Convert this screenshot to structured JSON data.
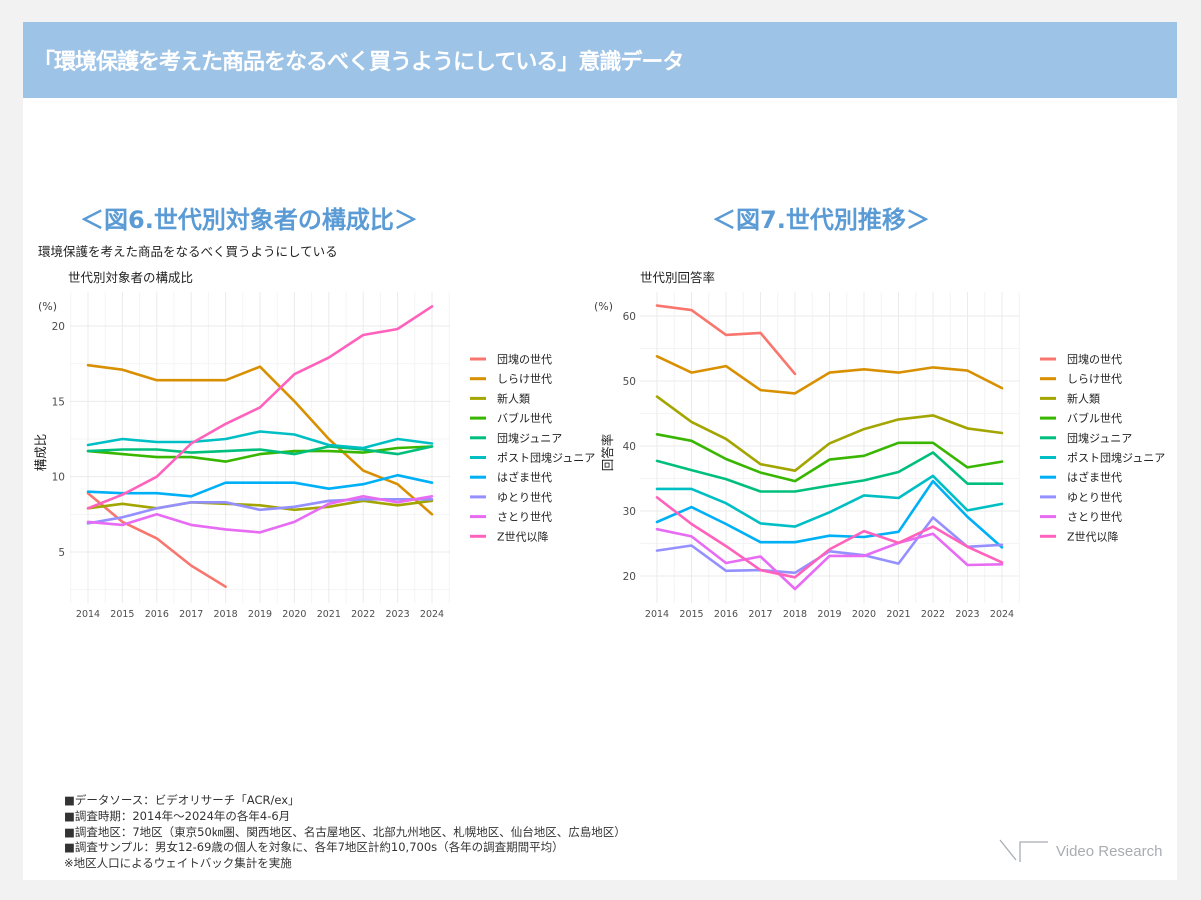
{
  "header": {
    "title": "「環境保護を考えた商品をなるべく買うようにしている」意識データ"
  },
  "figures": {
    "fig6_title": "＜図6.世代別対象者の構成比＞",
    "fig7_title": "＜図7.世代別推移＞",
    "fig6_question": "環境保護を考えた商品をなるべく買うようにしている"
  },
  "chart_data": [
    {
      "type": "line",
      "title": "世代別対象者の構成比",
      "xlabel": "",
      "ylabel": "構成比",
      "yunit": "(%)",
      "x": [
        2014,
        2015,
        2016,
        2017,
        2018,
        2019,
        2020,
        2021,
        2022,
        2023,
        2024
      ],
      "ylim": [
        2,
        22
      ],
      "yticks": [
        5,
        10,
        15,
        20
      ],
      "grid": true,
      "legend": "right",
      "series": [
        {
          "name": "団塊の世代",
          "color": "#f8766d",
          "values": [
            8.9,
            7.0,
            5.9,
            4.1,
            2.7,
            null,
            null,
            null,
            null,
            null,
            null
          ]
        },
        {
          "name": "しらけ世代",
          "color": "#d89000",
          "values": [
            17.4,
            17.1,
            16.4,
            16.4,
            16.4,
            17.3,
            15.0,
            12.5,
            10.4,
            9.5,
            7.5
          ]
        },
        {
          "name": "新人類",
          "color": "#a3a500",
          "values": [
            7.9,
            8.2,
            7.9,
            8.3,
            8.2,
            8.1,
            7.8,
            8.0,
            8.4,
            8.1,
            8.4
          ]
        },
        {
          "name": "バブル世代",
          "color": "#39b600",
          "values": [
            11.7,
            11.5,
            11.3,
            11.3,
            11.0,
            11.5,
            11.7,
            11.7,
            11.6,
            11.9,
            12.0
          ]
        },
        {
          "name": "団塊ジュニア",
          "color": "#00bf7d",
          "values": [
            11.7,
            11.8,
            11.8,
            11.6,
            11.7,
            11.8,
            11.5,
            12.0,
            11.8,
            11.5,
            12.0
          ]
        },
        {
          "name": "ポスト団塊ジュニア",
          "color": "#00bfc4",
          "values": [
            12.1,
            12.5,
            12.3,
            12.3,
            12.5,
            13.0,
            12.8,
            12.1,
            11.9,
            12.5,
            12.2
          ]
        },
        {
          "name": "はざま世代",
          "color": "#00b0f6",
          "values": [
            9.0,
            8.9,
            8.9,
            8.7,
            9.6,
            9.6,
            9.6,
            9.2,
            9.5,
            10.1,
            9.6
          ]
        },
        {
          "name": "ゆとり世代",
          "color": "#9590ff",
          "values": [
            6.9,
            7.3,
            7.9,
            8.3,
            8.3,
            7.8,
            8.0,
            8.4,
            8.5,
            8.5,
            8.5
          ]
        },
        {
          "name": "さとり世代",
          "color": "#e76bf3",
          "values": [
            7.0,
            6.8,
            7.5,
            6.8,
            6.5,
            6.3,
            7.0,
            8.2,
            8.7,
            8.3,
            8.7
          ]
        },
        {
          "name": "Z世代以降",
          "color": "#ff62bc",
          "values": [
            7.9,
            8.8,
            10.0,
            12.2,
            13.5,
            14.6,
            16.8,
            17.9,
            19.4,
            19.8,
            21.3
          ]
        }
      ]
    },
    {
      "type": "line",
      "title": "世代別回答率",
      "xlabel": "",
      "ylabel": "回答率",
      "yunit": "(%)",
      "x": [
        2014,
        2015,
        2016,
        2017,
        2018,
        2019,
        2020,
        2021,
        2022,
        2023,
        2024
      ],
      "ylim": [
        16,
        64
      ],
      "yticks": [
        20,
        30,
        40,
        50,
        60
      ],
      "grid": true,
      "legend": "right",
      "series": [
        {
          "name": "団塊の世代",
          "color": "#f8766d",
          "values": [
            61.6,
            60.9,
            57.1,
            57.4,
            51.1,
            null,
            null,
            null,
            null,
            null,
            null
          ]
        },
        {
          "name": "しらけ世代",
          "color": "#d89000",
          "values": [
            53.8,
            51.3,
            52.3,
            48.6,
            48.1,
            51.3,
            51.8,
            51.3,
            52.1,
            51.6,
            48.9
          ]
        },
        {
          "name": "新人類",
          "color": "#a3a500",
          "values": [
            47.6,
            43.7,
            41.1,
            37.2,
            36.2,
            40.4,
            42.6,
            44.1,
            44.7,
            42.7,
            42.0
          ]
        },
        {
          "name": "バブル世代",
          "color": "#39b600",
          "values": [
            41.8,
            40.8,
            38.0,
            35.9,
            34.6,
            37.9,
            38.5,
            40.5,
            40.5,
            36.7,
            37.6
          ]
        },
        {
          "name": "団塊ジュニア",
          "color": "#00bf7d",
          "values": [
            37.7,
            36.3,
            34.9,
            33.0,
            33.0,
            33.9,
            34.7,
            36.0,
            39.0,
            34.2,
            34.2
          ]
        },
        {
          "name": "ポスト団塊ジュニア",
          "color": "#00bfc4",
          "values": [
            33.4,
            33.4,
            31.2,
            28.1,
            27.6,
            29.8,
            32.4,
            32.0,
            35.4,
            30.1,
            31.1
          ]
        },
        {
          "name": "はざま世代",
          "color": "#00b0f6",
          "values": [
            28.3,
            30.6,
            28.0,
            25.2,
            25.2,
            26.2,
            26.0,
            26.8,
            34.6,
            29.1,
            24.4
          ]
        },
        {
          "name": "ゆとり世代",
          "color": "#9590ff",
          "values": [
            23.9,
            24.7,
            20.8,
            20.9,
            20.5,
            23.8,
            23.2,
            21.9,
            29.0,
            24.5,
            24.8
          ]
        },
        {
          "name": "さとり世代",
          "color": "#e76bf3",
          "values": [
            27.2,
            26.1,
            22.0,
            23.0,
            18.0,
            23.1,
            23.1,
            25.1,
            26.5,
            21.7,
            21.8
          ]
        },
        {
          "name": "Z世代以降",
          "color": "#ff62bc",
          "values": [
            32.1,
            28.0,
            24.6,
            20.9,
            19.8,
            24.1,
            26.9,
            25.1,
            27.6,
            24.5,
            22.1
          ]
        }
      ]
    }
  ],
  "notes": [
    "■データソース：ビデオリサーチ「ACR/ex」",
    "■調査時期：2014年～2024年の各年4-6月",
    "■調査地区：7地区（東京50㎞圏、関西地区、名古屋地区、北部九州地区、札幌地区、仙台地区、広島地区）",
    "■調査サンプル：男女12-69歳の個人を対象に、各年7地区計約10,700s（各年の調査期間平均）",
    "※地区人口によるウェイトバック集計を実施"
  ],
  "logo": {
    "text": "Video Research"
  }
}
